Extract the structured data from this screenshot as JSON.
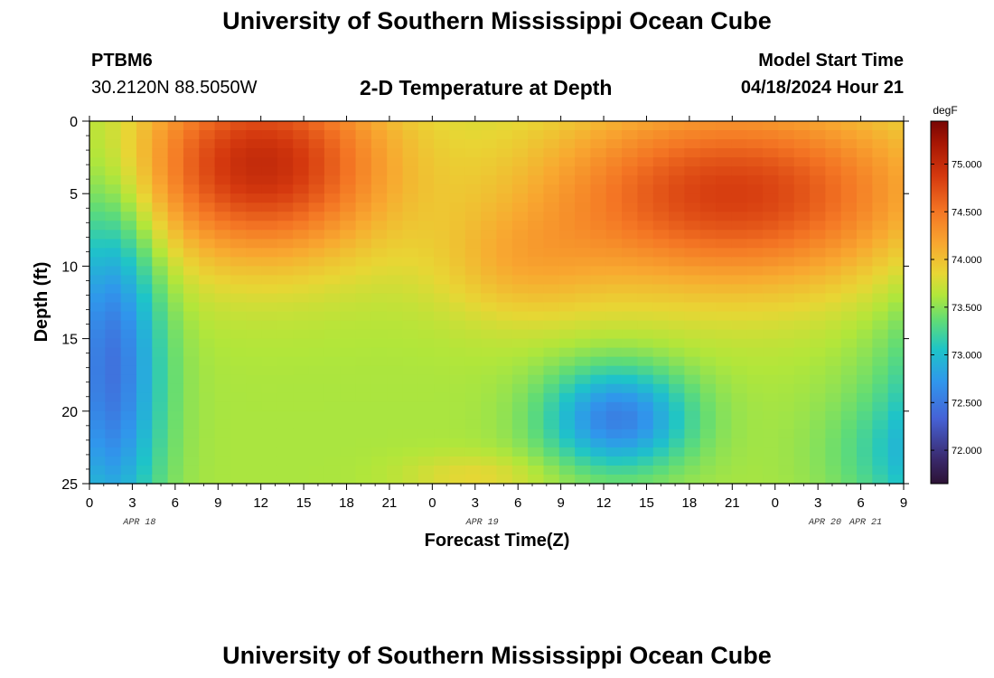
{
  "header": {
    "title": "University of Southern Mississippi Ocean Cube",
    "station": "PTBM6",
    "coordinates": "30.2120N  88.5050W",
    "subtitle": "2-D Temperature at Depth",
    "model_start_label": "Model Start Time",
    "model_start_value": "04/18/2024 Hour 21"
  },
  "footer": {
    "title": "University of Southern Mississippi Ocean Cube"
  },
  "chart_data": {
    "type": "heatmap",
    "title": "2-D Temperature at Depth",
    "xlabel": "Forecast Time(Z)",
    "ylabel": "Depth (ft)",
    "x_hours": [
      0,
      57
    ],
    "x_tick_labels": [
      "0",
      "3",
      "6",
      "9",
      "12",
      "15",
      "18",
      "21",
      "0",
      "3",
      "6",
      "9",
      "12",
      "15",
      "18",
      "21",
      "0",
      "3",
      "6",
      "9",
      "12",
      "15",
      "18",
      "21",
      "0",
      "3",
      "6"
    ],
    "date_labels": [
      {
        "label": "APR 18",
        "hour": 3.5
      },
      {
        "label": "APR 19",
        "hour": 27.5
      },
      {
        "label": "APR 20",
        "hour": 51.5
      },
      {
        "label": "APR 21",
        "hour": 66.5
      }
    ],
    "ylim": [
      0,
      25
    ],
    "y_ticks": [
      0,
      5,
      10,
      15,
      20,
      25
    ],
    "colorbar": {
      "unit": "degF",
      "range": [
        71.65,
        75.45
      ],
      "ticks": [
        "72.000",
        "72.500",
        "73.000",
        "73.500",
        "74.000",
        "74.500",
        "75.000"
      ]
    },
    "temperature_features": [
      {
        "name": "warm surface core",
        "hour": 12,
        "depth_ft": 3,
        "value_degF": 75.1
      },
      {
        "name": "warm mid layer",
        "hour": 45,
        "depth_ft": 5,
        "value_degF": 74.9
      },
      {
        "name": "warm surface corner",
        "hour": 75,
        "depth_ft": 0,
        "value_degF": 75.4
      },
      {
        "name": "cool nearshore column",
        "hour": 2,
        "depth_ft": 20,
        "value_degF": 72.55
      },
      {
        "name": "cool pocket",
        "hour": 37,
        "depth_ft": 20.5,
        "value_degF": 72.5
      },
      {
        "name": "cold bottom water",
        "hour": 68,
        "depth_ft": 21,
        "value_degF": 71.75
      }
    ]
  }
}
